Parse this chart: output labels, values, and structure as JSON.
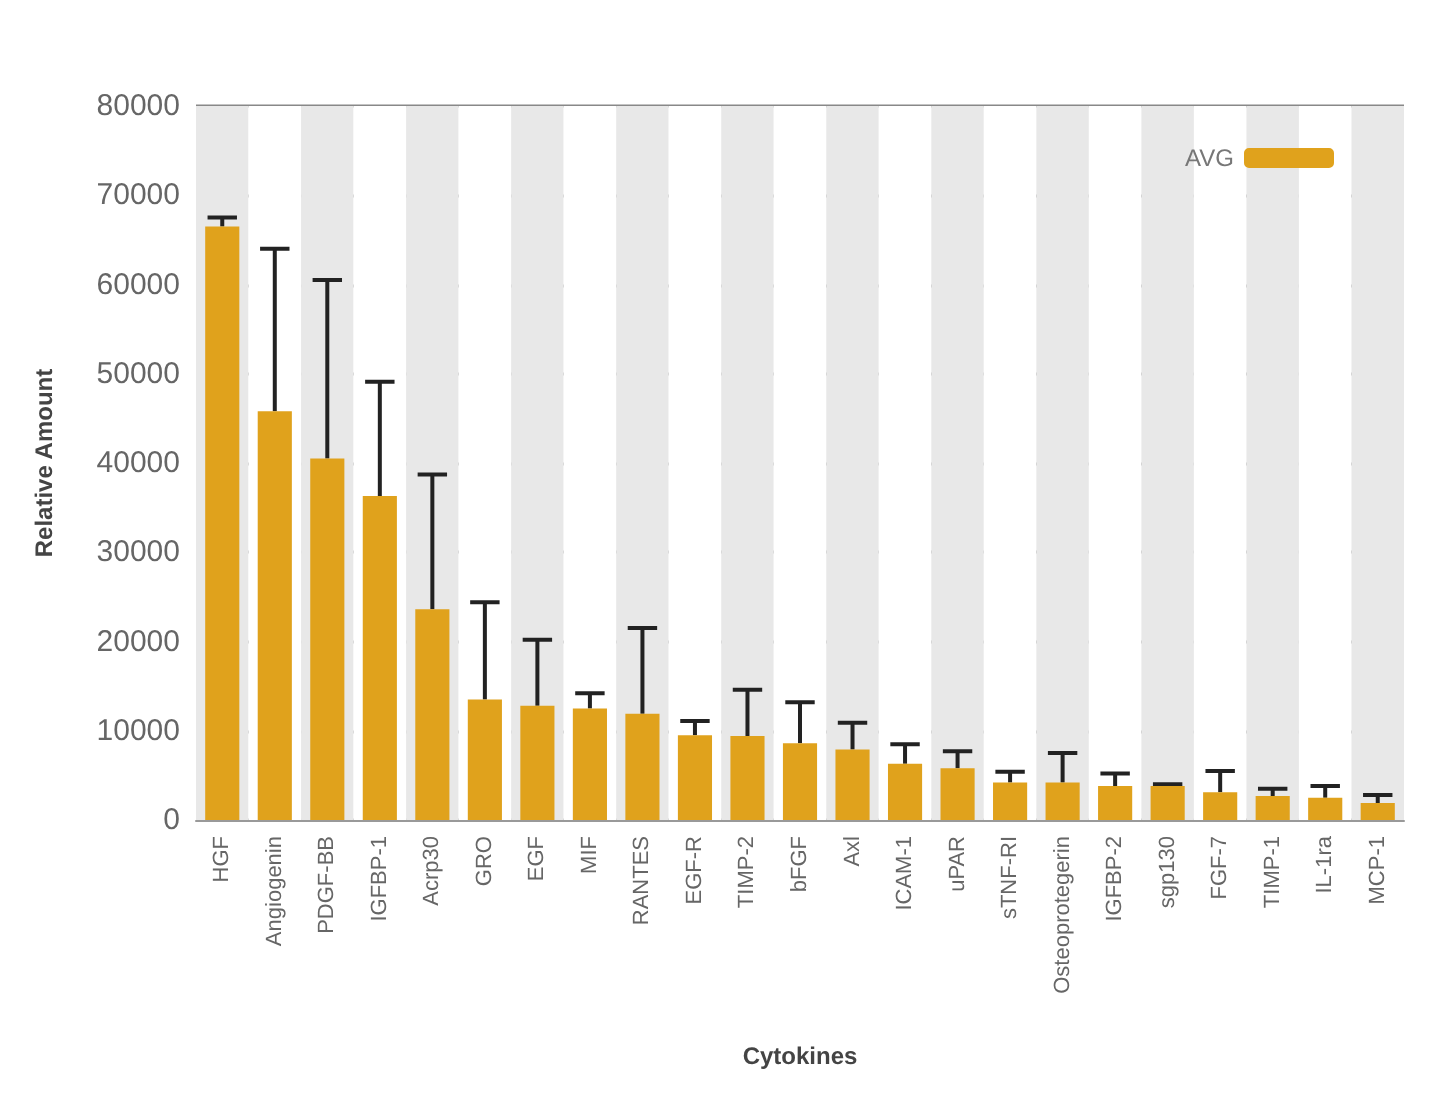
{
  "chart_data": {
    "type": "bar",
    "xlabel": "Cytokines",
    "ylabel": "Relative Amount",
    "categories": [
      "HGF",
      "Angiogenin",
      "PDGF-BB",
      "IGFBP-1",
      "Acrp30",
      "GRO",
      "EGF",
      "MIF",
      "RANTES",
      "EGF-R",
      "TIMP-2",
      "bFGF",
      "Axl",
      "ICAM-1",
      "uPAR",
      "sTNF-RI",
      "Osteoprotegerin",
      "IGFBP-2",
      "sgp130",
      "FGF-7",
      "TIMP-1",
      "IL-1ra",
      "MCP-1"
    ],
    "series": [
      {
        "name": "AVG",
        "color": "#e0a21c",
        "values": [
          66500,
          45800,
          40500,
          36300,
          23600,
          13500,
          12800,
          12500,
          11900,
          9500,
          9400,
          8600,
          7900,
          6300,
          5800,
          4200,
          4200,
          3800,
          3800,
          3100,
          2700,
          2500,
          1900
        ],
        "errors": [
          [
            66500,
            67500
          ],
          [
            45800,
            64000
          ],
          [
            40500,
            60500
          ],
          [
            36300,
            49100
          ],
          [
            23600,
            38700
          ],
          [
            13500,
            24400
          ],
          [
            12800,
            20200
          ],
          [
            12500,
            14200
          ],
          [
            11900,
            21500
          ],
          [
            9500,
            11100
          ],
          [
            9400,
            14600
          ],
          [
            8600,
            13200
          ],
          [
            7900,
            10900
          ],
          [
            6300,
            8500
          ],
          [
            5800,
            7700
          ],
          [
            4200,
            5400
          ],
          [
            4200,
            7500
          ],
          [
            3800,
            5200
          ],
          [
            3800,
            4000
          ],
          [
            3100,
            5500
          ],
          [
            2700,
            3500
          ],
          [
            2500,
            3800
          ],
          [
            1900,
            2800
          ]
        ]
      }
    ],
    "ylim": [
      0,
      80000
    ],
    "yticks": [
      0,
      10000,
      20000,
      30000,
      40000,
      50000,
      60000,
      70000,
      80000
    ],
    "grid": "y",
    "legend": "top right"
  }
}
